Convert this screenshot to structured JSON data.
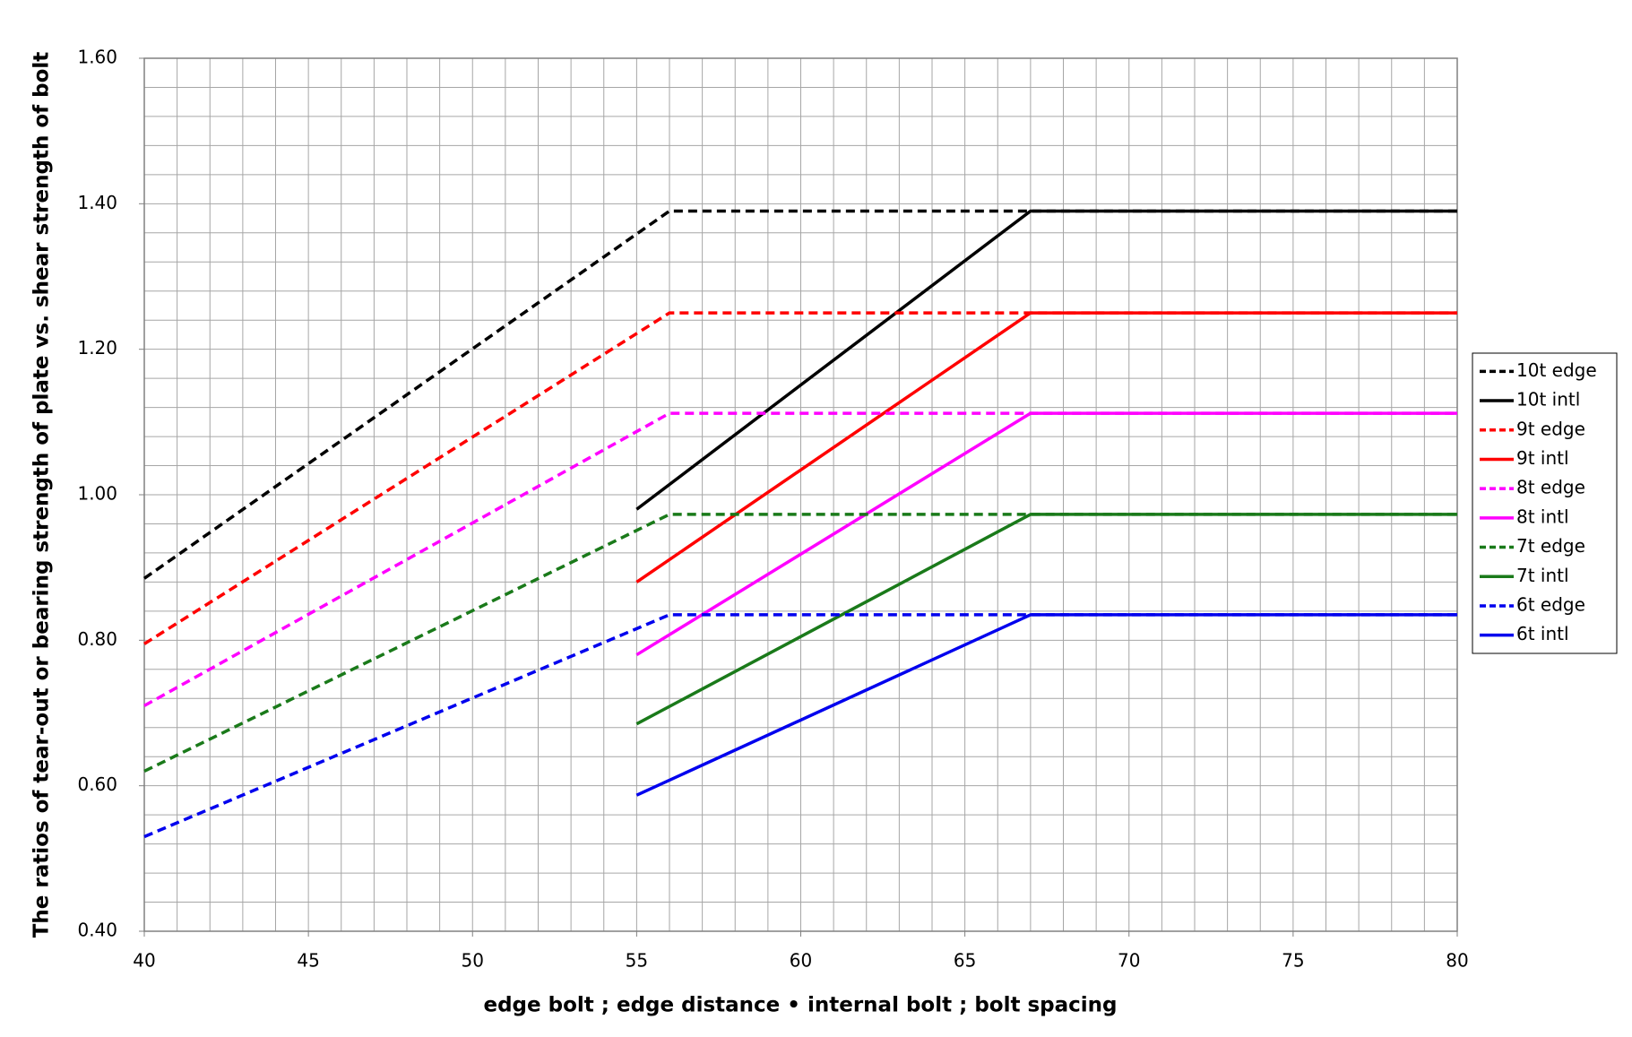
{
  "chart_data": {
    "type": "line",
    "x_label": "edge bolt ; edge distance • internal bolt ;  bolt spacing",
    "y_label": "The ratios of tear-out or bearing strength of plate vs. shear strength of bolt",
    "xlim": [
      40,
      80
    ],
    "xticks": [
      40,
      45,
      50,
      55,
      60,
      65,
      70,
      75,
      80
    ],
    "ylim": [
      0.4,
      1.6
    ],
    "yticks": [
      {
        "value": 0.4,
        "label": "0.40"
      },
      {
        "value": 0.6,
        "label": "0.60"
      },
      {
        "value": 0.8,
        "label": "0.80"
      },
      {
        "value": 1.0,
        "label": "1.00"
      },
      {
        "value": 1.2,
        "label": "1.20"
      },
      {
        "value": 1.4,
        "label": "1.40"
      },
      {
        "value": 1.6,
        "label": "1.60"
      }
    ],
    "grid": true,
    "x_minor_step": 1,
    "y_minor_step": 0.04,
    "legend": "right",
    "series": [
      {
        "name": "10t edge",
        "color": "#000000",
        "dashed": true,
        "x": [
          40,
          56,
          80
        ],
        "values": [
          0.885,
          1.39,
          1.39
        ]
      },
      {
        "name": "10t intl",
        "color": "#000000",
        "dashed": false,
        "x": [
          55,
          67,
          80
        ],
        "values": [
          0.98,
          1.39,
          1.39
        ]
      },
      {
        "name": "9t edge",
        "color": "#ff0000",
        "dashed": true,
        "x": [
          40,
          56,
          80
        ],
        "values": [
          0.795,
          1.25,
          1.25
        ]
      },
      {
        "name": "9t intl",
        "color": "#ff0000",
        "dashed": false,
        "x": [
          55,
          67,
          80
        ],
        "values": [
          0.88,
          1.25,
          1.25
        ]
      },
      {
        "name": "8t edge",
        "color": "#ff00ff",
        "dashed": true,
        "x": [
          40,
          56,
          80
        ],
        "values": [
          0.71,
          1.112,
          1.112
        ]
      },
      {
        "name": "8t intl",
        "color": "#ff00ff",
        "dashed": false,
        "x": [
          55,
          67,
          80
        ],
        "values": [
          0.78,
          1.112,
          1.112
        ]
      },
      {
        "name": "7t edge",
        "color": "#1a7a1a",
        "dashed": true,
        "x": [
          40,
          56,
          80
        ],
        "values": [
          0.62,
          0.973,
          0.973
        ]
      },
      {
        "name": "7t intl",
        "color": "#1a7a1a",
        "dashed": false,
        "x": [
          55,
          67,
          80
        ],
        "values": [
          0.685,
          0.973,
          0.973
        ]
      },
      {
        "name": "6t edge",
        "color": "#0000ee",
        "dashed": true,
        "x": [
          40,
          56,
          80
        ],
        "values": [
          0.53,
          0.835,
          0.835
        ]
      },
      {
        "name": "6t intl",
        "color": "#0000ee",
        "dashed": false,
        "x": [
          55,
          67,
          80
        ],
        "values": [
          0.587,
          0.835,
          0.835
        ]
      }
    ]
  }
}
